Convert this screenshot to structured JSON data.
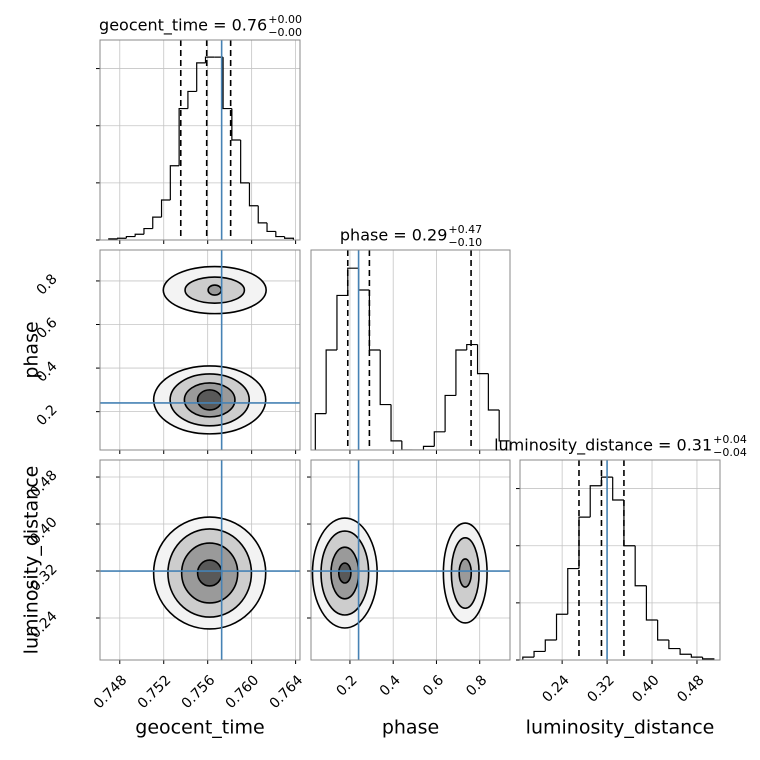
{
  "chart_data": [
    {
      "type": "histogram",
      "title": "geocent_time = 0.76",
      "title_sup": "+0.00",
      "title_sub": "−0.00",
      "bins": [
        0.747,
        0.7478,
        0.7486,
        0.7494,
        0.7502,
        0.751,
        0.7518,
        0.7526,
        0.7534,
        0.7542,
        0.755,
        0.7558,
        0.7566,
        0.7574,
        0.7582,
        0.759,
        0.7598,
        0.7606,
        0.7614,
        0.7622,
        0.763,
        0.7638
      ],
      "counts": [
        0.02,
        0.03,
        0.06,
        0.1,
        0.2,
        0.4,
        0.7,
        1.3,
        2.3,
        2.6,
        3.1,
        3.2,
        3.2,
        2.3,
        1.75,
        1.0,
        0.6,
        0.3,
        0.15,
        0.06,
        0.03
      ],
      "color": "#000000",
      "xlim": [
        0.7462,
        0.7644
      ],
      "xticks": [
        0.748,
        0.752,
        0.756,
        {
          "value": 0.76,
          "label": "0.760"
        },
        0.764
      ],
      "ylim": [
        0,
        3.5
      ],
      "yticks": [
        0,
        1,
        2,
        3
      ],
      "quantiles": [
        0.75355,
        0.75591,
        0.75809
      ],
      "truth": 0.75727,
      "truth_color": "#4682b4",
      "grid": true,
      "xtick_labels": false,
      "ytick_labels": false
    },
    {
      "type": "contour",
      "xlim": [
        0.7462,
        0.7644
      ],
      "xticks": [
        0.748,
        0.752,
        0.756,
        {
          "value": 0.76,
          "label": "0.760"
        },
        0.764
      ],
      "ylim": [
        0.024,
        0.942
      ],
      "yticks": [
        0.2,
        0.4,
        0.6,
        0.8
      ],
      "ylabel": "phase",
      "xtick_labels": false,
      "ytick_labels": true,
      "modes": [
        [
          {
            "x": 0.75664,
            "y": 0.758,
            "rx": 0.00468,
            "ry": 0.108
          },
          {
            "x": 0.75664,
            "y": 0.758,
            "rx": 0.0027,
            "ry": 0.06
          },
          {
            "x": 0.75664,
            "y": 0.758,
            "rx": 0.0006,
            "ry": 0.023
          }
        ],
        [
          {
            "x": 0.75618,
            "y": 0.254,
            "rx": 0.0051,
            "ry": 0.156
          },
          {
            "x": 0.75618,
            "y": 0.254,
            "rx": 0.0036,
            "ry": 0.119
          },
          {
            "x": 0.75618,
            "y": 0.254,
            "rx": 0.0023,
            "ry": 0.078
          },
          {
            "x": 0.75618,
            "y": 0.254,
            "rx": 0.0011,
            "ry": 0.046
          }
        ]
      ],
      "fills": [
        "#f3f3f3",
        "#cdcdcd",
        "#9a9a9a",
        "#595959"
      ],
      "line_color": "#000000",
      "truth_x": 0.75727,
      "truth_y": 0.24,
      "truth_color": "#4682b4",
      "grid": true
    },
    {
      "type": "histogram",
      "title": "phase = 0.29",
      "title_sup": "+0.47",
      "title_sub": "−0.10",
      "bins": [
        0.04,
        0.09,
        0.14,
        0.19,
        0.24,
        0.29,
        0.34,
        0.39,
        0.44,
        0.49,
        0.54,
        0.59,
        0.64,
        0.69,
        0.74,
        0.79,
        0.84,
        0.89,
        0.94
      ],
      "counts": [
        0.2,
        0.55,
        0.85,
        1.0,
        0.88,
        0.55,
        0.25,
        0.05,
        0.0,
        0.0,
        0.02,
        0.1,
        0.3,
        0.55,
        0.58,
        0.42,
        0.22,
        0.05
      ],
      "color": "#000000",
      "xlim": [
        0.02,
        0.94
      ],
      "xticks": [
        0.2,
        0.4,
        0.6,
        0.8
      ],
      "ylim": [
        0,
        1.1
      ],
      "quantiles": [
        0.19,
        0.29,
        0.76
      ],
      "truth": 0.24,
      "truth_color": "#4682b4",
      "grid": true,
      "xtick_labels": false
    },
    {
      "type": "contour",
      "xlim": [
        0.7462,
        0.7644
      ],
      "xticks": [
        0.748,
        0.752,
        0.756,
        {
          "value": 0.76,
          "label": "0.760"
        },
        0.764
      ],
      "ylim": [
        0.1685,
        0.509
      ],
      "yticks": [
        0.24,
        0.32,
        {
          "value": 0.4,
          "label": "0.40"
        },
        0.48
      ],
      "xlabel": "geocent_time",
      "ylabel": "luminosity_distance",
      "xtick_labels": true,
      "ytick_labels": true,
      "modes": [
        [
          {
            "x": 0.75618,
            "y": 0.3166,
            "rx": 0.0051,
            "ry": 0.0953
          },
          {
            "x": 0.75618,
            "y": 0.3166,
            "rx": 0.0038,
            "ry": 0.075
          },
          {
            "x": 0.75618,
            "y": 0.3166,
            "rx": 0.00255,
            "ry": 0.051
          },
          {
            "x": 0.75618,
            "y": 0.3166,
            "rx": 0.0011,
            "ry": 0.022
          }
        ]
      ],
      "fills": [
        "#f3f3f3",
        "#cdcdcd",
        "#9a9a9a",
        "#595959"
      ],
      "line_color": "#000000",
      "truth_x": 0.75727,
      "truth_y": 0.32,
      "truth_color": "#4682b4",
      "grid": true
    },
    {
      "type": "contour",
      "xlim": [
        0.02,
        0.94
      ],
      "xticks": [
        0.2,
        0.4,
        0.6,
        0.8
      ],
      "ylim": [
        0.1685,
        0.509
      ],
      "yticks": [
        0.24,
        0.32,
        {
          "value": 0.4,
          "label": "0.40"
        },
        0.48
      ],
      "xlabel": "phase",
      "xtick_labels": true,
      "ytick_labels": false,
      "modes": [
        [
          {
            "x": 0.1764,
            "y": 0.3166,
            "rx": 0.1495,
            "ry": 0.0936
          },
          {
            "x": 0.1764,
            "y": 0.3166,
            "rx": 0.11,
            "ry": 0.0715
          },
          {
            "x": 0.1764,
            "y": 0.3166,
            "rx": 0.064,
            "ry": 0.044
          },
          {
            "x": 0.1764,
            "y": 0.3166,
            "rx": 0.028,
            "ry": 0.017
          }
        ],
        [
          {
            "x": 0.733,
            "y": 0.3166,
            "rx": 0.101,
            "ry": 0.085
          },
          {
            "x": 0.733,
            "y": 0.3166,
            "rx": 0.064,
            "ry": 0.06
          },
          {
            "x": 0.733,
            "y": 0.3166,
            "rx": 0.028,
            "ry": 0.024
          }
        ]
      ],
      "fills": [
        "#f3f3f3",
        "#cdcdcd",
        "#9a9a9a",
        "#595959"
      ],
      "line_color": "#000000",
      "truth_x": 0.24,
      "truth_y": 0.32,
      "truth_color": "#4682b4",
      "grid": true
    },
    {
      "type": "histogram",
      "title": "luminosity_distance = 0.31",
      "title_sup": "+0.04",
      "title_sub": "−0.04",
      "bins": [
        0.17,
        0.19,
        0.21,
        0.23,
        0.25,
        0.27,
        0.29,
        0.31,
        0.33,
        0.35,
        0.37,
        0.39,
        0.41,
        0.43,
        0.45,
        0.47,
        0.49,
        0.51
      ],
      "counts": [
        0.05,
        0.15,
        0.35,
        0.8,
        1.6,
        2.5,
        3.05,
        3.2,
        2.8,
        2.0,
        1.3,
        0.7,
        0.35,
        0.2,
        0.1,
        0.05,
        0.02
      ],
      "color": "#000000",
      "xlim": [
        0.165,
        0.521
      ],
      "xticks": [
        0.24,
        0.32,
        {
          "value": 0.4,
          "label": "0.40"
        },
        0.48
      ],
      "ylim": [
        0,
        3.5
      ],
      "yticks": [
        0,
        1,
        2,
        3
      ],
      "xlabel": "luminosity_distance",
      "quantiles": [
        0.27,
        0.31,
        0.35
      ],
      "truth": 0.32,
      "truth_color": "#4682b4",
      "grid": true,
      "xtick_labels": true,
      "ytick_labels": false
    }
  ]
}
